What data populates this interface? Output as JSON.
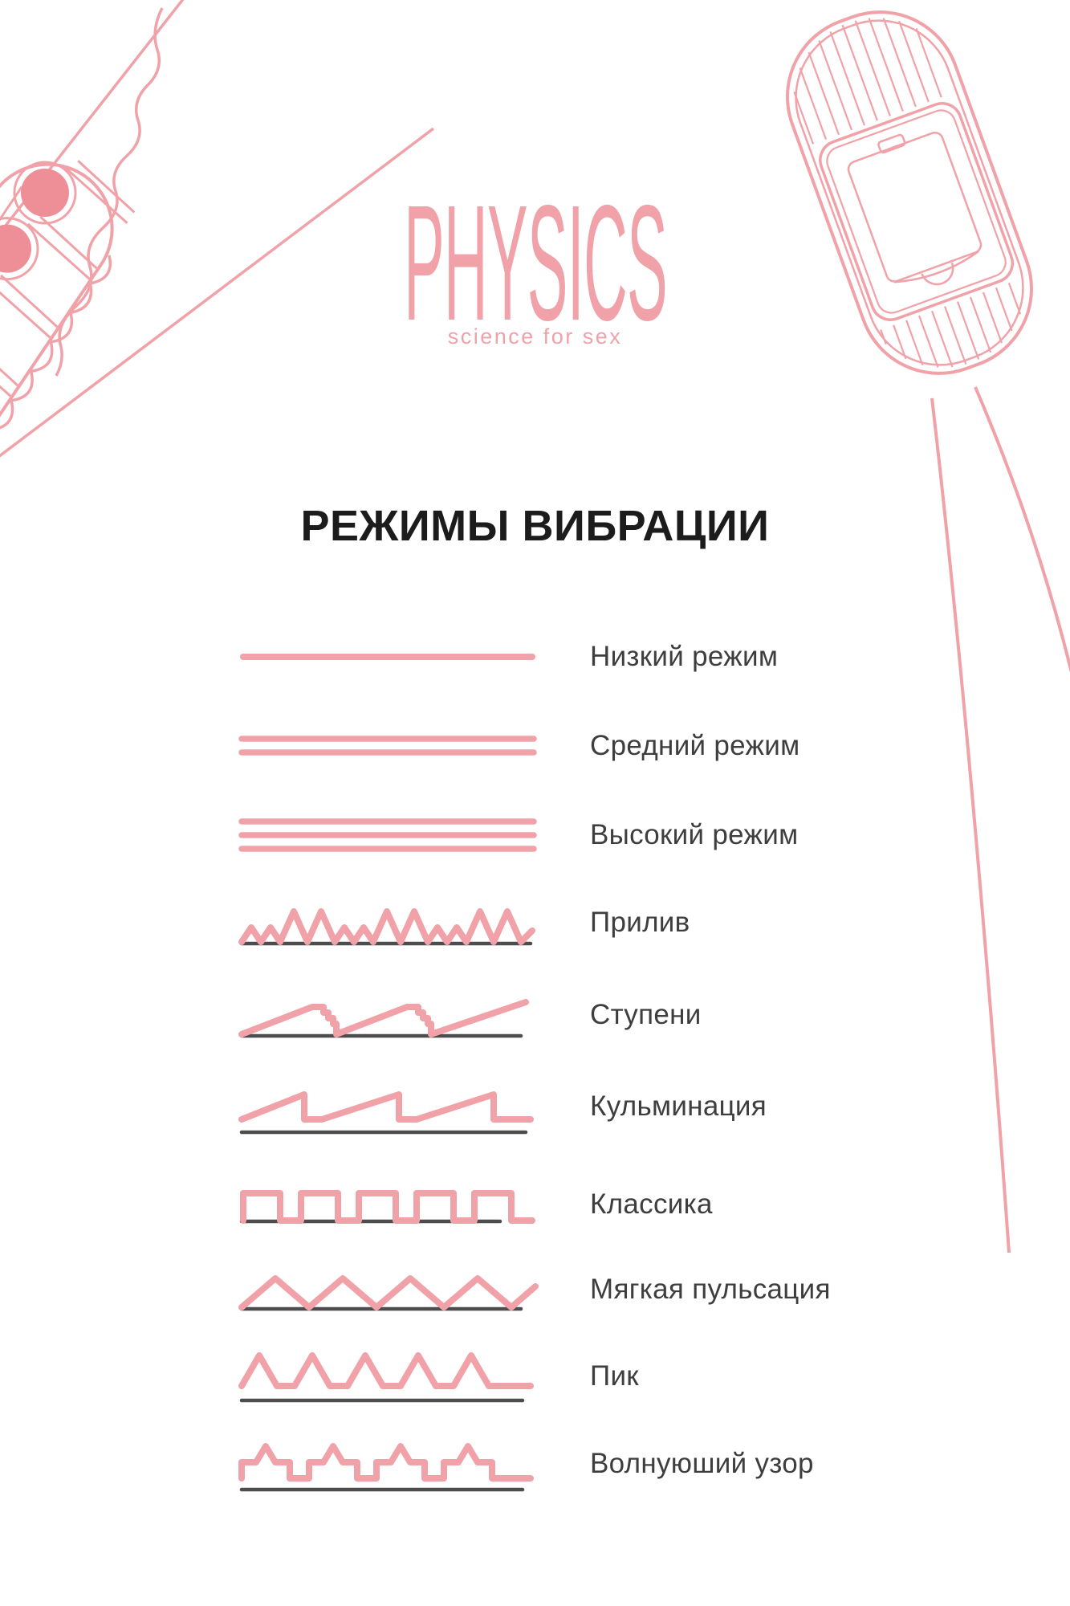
{
  "brand": {
    "name": "PHYSICS",
    "tagline": "science for sex"
  },
  "section": {
    "title": "РЕЖИМЫ ВИБРАЦИИ"
  },
  "modes": [
    {
      "label": "Низкий режим",
      "waveform": "line-1"
    },
    {
      "label": "Средний режим",
      "waveform": "line-2"
    },
    {
      "label": "Высокий режим",
      "waveform": "line-3"
    },
    {
      "label": "Прилив",
      "waveform": "tide"
    },
    {
      "label": "Ступени",
      "waveform": "steps"
    },
    {
      "label": "Кульминация",
      "waveform": "sawtooth"
    },
    {
      "label": "Классика",
      "waveform": "square"
    },
    {
      "label": "Мягкая пульсация",
      "waveform": "triangle"
    },
    {
      "label": "Пик",
      "waveform": "peak"
    },
    {
      "label": "Волнуюший узор",
      "waveform": "castellated"
    }
  ],
  "illustrations": {
    "left": "ribbed-bullet-vibrator-line-art",
    "right": "vibrator-battery-compartment-line-art"
  },
  "colors": {
    "accent": "#F0A2A8",
    "accent_fill": "#EE8E97",
    "baseline": "#4D4D4D",
    "title": "#1C1C1C",
    "label": "#3E3E3E",
    "background": "#FFFFFF"
  }
}
